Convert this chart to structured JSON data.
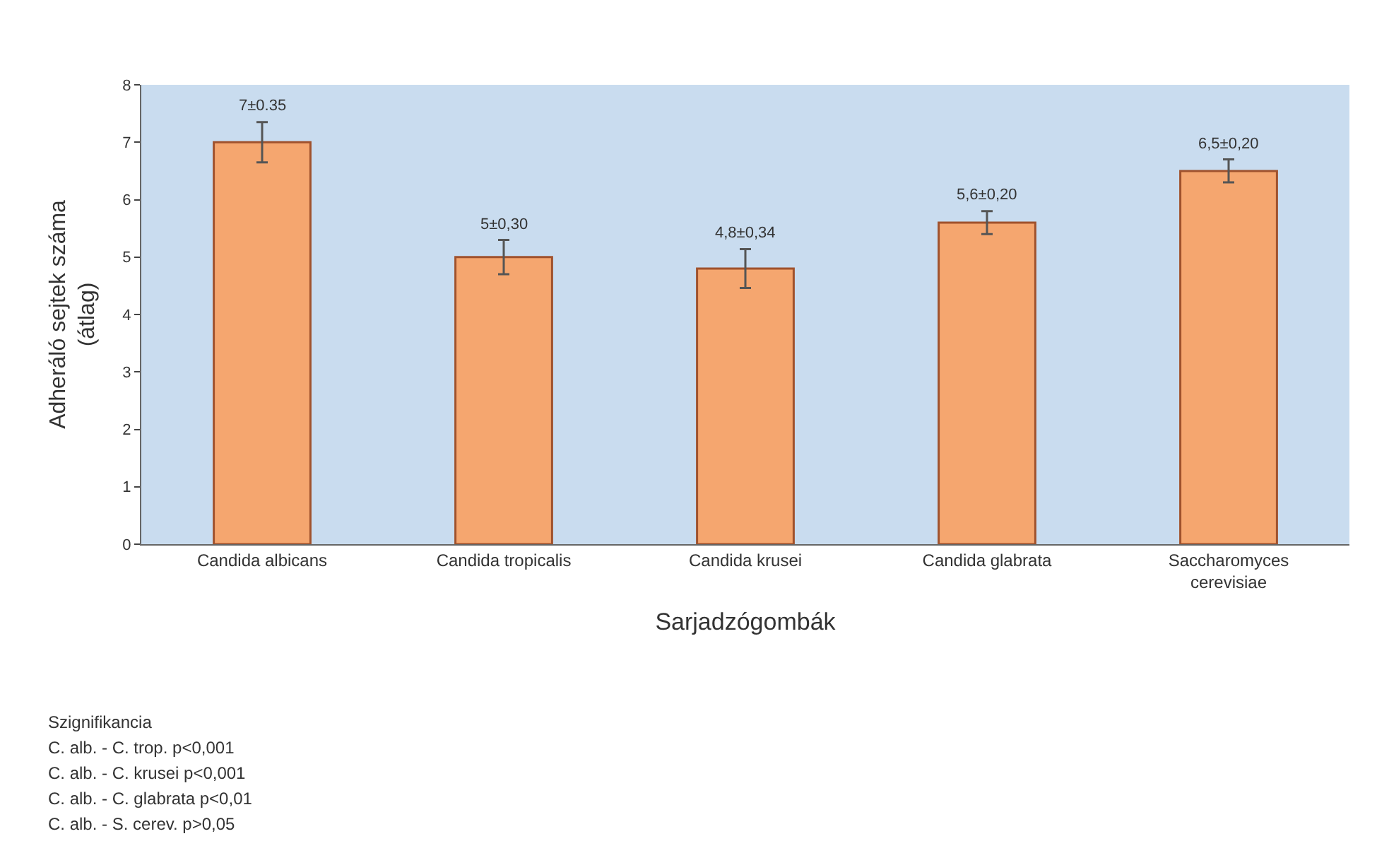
{
  "chart_data": {
    "type": "bar",
    "xlabel": "Sarjadzógombák",
    "ylabel": "Adheráló sejtek száma\n(átlag)",
    "categories": [
      "Candida albicans",
      "Candida tropicalis",
      "Candida krusei",
      "Candida glabrata",
      "Saccharomyces cerevisiae"
    ],
    "values": [
      7,
      5,
      4.8,
      5.6,
      6.5
    ],
    "errors": [
      0.35,
      0.3,
      0.34,
      0.2,
      0.2
    ],
    "value_labels": [
      "7±0.35",
      "5±0,30",
      "4,8±0,34",
      "5,6±0,20",
      "6,5±0,20"
    ],
    "color": "#f5a66f",
    "ylim": [
      0,
      8
    ],
    "yticks": [
      0,
      1,
      2,
      3,
      4,
      5,
      6,
      7,
      8
    ],
    "grid": false,
    "legend": false,
    "annotations": [
      "Szignifikancia",
      "C. alb. - C. trop. p<0,001",
      "C. alb. - C. krusei p<0,001",
      "C. alb. - C. glabrata p<0,01",
      "C. alb. - S. cerev. p>0,05"
    ]
  }
}
